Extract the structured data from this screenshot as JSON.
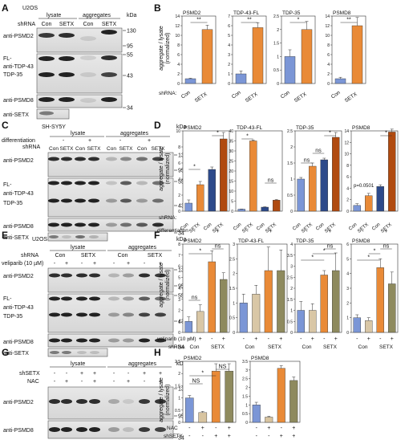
{
  "panels": {
    "A": {
      "letter": "A",
      "cell": "U2OS",
      "groups": [
        "lysate",
        "aggregates"
      ],
      "row_label": "shRNA",
      "lanes": [
        "Con",
        "SETX",
        "Con",
        "SETX"
      ],
      "kda_unit": "kDa",
      "markers": [
        "130",
        "95",
        "55",
        "43",
        "34"
      ],
      "blots": [
        "anti-PSMD2",
        "FL-",
        "anti-TDP-43",
        "TDP-35",
        "anti-PSMD8",
        "anti-SETX"
      ]
    },
    "B": {
      "letter": "B",
      "ylabel": [
        "aggregate / lysate",
        "(normalized)"
      ],
      "xrow_label": "shRNA:",
      "categories": [
        "Con",
        "SETX"
      ],
      "sig": "**",
      "sig_single": "*"
    },
    "C": {
      "letter": "C",
      "cell": "SH-SY5Y",
      "row1_label": "differentiation",
      "row2_label": "shRNA",
      "groups": [
        "lysate",
        "aggregates"
      ],
      "pm": [
        "-",
        "+",
        "-",
        "+"
      ],
      "lanes": [
        "Con",
        "SETX",
        "Con",
        "SETX",
        "Con",
        "SETX",
        "Con",
        "SETX"
      ],
      "kda_unit": "kDa",
      "markers": [
        "130",
        "95",
        "55",
        "43",
        "34"
      ],
      "blots": [
        "anti-PSMD2",
        "FL-",
        "anti-TDP-43",
        "TDP-35",
        "anti-PSMD8",
        "anti-SETX"
      ]
    },
    "D": {
      "letter": "D",
      "ylabel": [
        "aggregate / lysate",
        "(normalized)"
      ],
      "xrow1_label": "shRNA:",
      "xrow2_label": "differentiation",
      "lanes": [
        "Con",
        "SETX",
        "Con",
        "SETX"
      ],
      "pm": [
        "-",
        "+"
      ],
      "sig": "*",
      "ns": "ns",
      "pval": "p=0.0501"
    },
    "E": {
      "letter": "E",
      "cell": "U2OS",
      "row1_label": "shRNA",
      "row2_label": "veliparib (10 µM)",
      "groups": [
        "lysate",
        "aggregates"
      ],
      "sh": [
        "Con",
        "SETX",
        "Con",
        "SETX"
      ],
      "pm": [
        "-",
        "+",
        "-",
        "+",
        "-",
        "+",
        "-",
        "+"
      ],
      "kda_unit": "kDa",
      "markers": [
        "130",
        "95",
        "55",
        "43",
        "34"
      ],
      "blots": [
        "anti-PSMD2",
        "FL-",
        "anti-TDP-43",
        "TDP-35",
        "anti-PSMD8",
        "anti-SETX"
      ]
    },
    "F": {
      "letter": "F",
      "ylabel": [
        "aggregate / lysate",
        "(normalized)"
      ],
      "xrow1_label": "veliparib (10 µM)",
      "xrow2_label": "shRNA",
      "pm": [
        "-",
        "+",
        "-",
        "+"
      ],
      "sh": [
        "Con",
        "SETX"
      ],
      "sig": "*",
      "ns": "ns"
    },
    "G": {
      "letter": "G",
      "row1_label": "shSETX",
      "row2_label": "NAC",
      "groups": [
        "lysate",
        "aggregates"
      ],
      "row1": [
        "-",
        "-",
        "+",
        "+",
        "-",
        "-",
        "+",
        "+"
      ],
      "row2": [
        "-",
        "+",
        "-",
        "+",
        "-",
        "+",
        "-",
        "+"
      ],
      "kda_unit": "kDa",
      "markers": [
        "130",
        "95",
        "34"
      ],
      "blots": [
        "anti-PSMD2",
        "anti-PSMD8"
      ]
    },
    "H": {
      "letter": "H",
      "ylabel": [
        "aggregate / lysate",
        "(normalized)"
      ],
      "xrow1_label": "NAC",
      "xrow2_label": "shSETX",
      "row1": [
        "-",
        "+",
        "-",
        "+"
      ],
      "row2": [
        "-",
        "-",
        "+",
        "+"
      ],
      "sig": "*",
      "ns": "NS"
    }
  },
  "colors": {
    "con": "#7b96d6",
    "setx": "#e98a37",
    "con_dark": "#2d4a8a",
    "setx_dark": "#b04a10",
    "con_light": "#d9c7a6",
    "setx_olive": "#8e8a5e",
    "setx_beige": "#d8c4a0"
  },
  "chart_data": [
    {
      "panel": "B",
      "type": "bar",
      "title": "PSMD2",
      "categories": [
        "Con",
        "SETX"
      ],
      "values": [
        1,
        11.2
      ],
      "errors": [
        0.1,
        0.9
      ],
      "ylim": [
        0,
        14
      ],
      "yticks": [
        0,
        2,
        4,
        6,
        8,
        10,
        12,
        14
      ],
      "sig": "**"
    },
    {
      "panel": "B",
      "type": "bar",
      "title": "TDP-43-FL",
      "categories": [
        "Con",
        "SETX"
      ],
      "values": [
        1,
        5.8
      ],
      "errors": [
        0.3,
        0.5
      ],
      "ylim": [
        0,
        7
      ],
      "yticks": [
        0,
        1,
        2,
        3,
        4,
        5,
        6,
        7
      ],
      "sig": "**"
    },
    {
      "panel": "B",
      "type": "bar",
      "title": "TDP-35",
      "categories": [
        "Con",
        "SETX"
      ],
      "values": [
        1,
        2
      ],
      "errors": [
        0.25,
        0.3
      ],
      "ylim": [
        0,
        2.5
      ],
      "yticks": [
        0,
        0.5,
        1,
        1.5,
        2,
        2.5
      ],
      "sig": "*"
    },
    {
      "panel": "B",
      "type": "bar",
      "title": "PSMD8",
      "categories": [
        "Con",
        "SETX"
      ],
      "values": [
        1,
        12
      ],
      "errors": [
        0.3,
        1.7
      ],
      "ylim": [
        0,
        14
      ],
      "yticks": [
        0,
        2,
        4,
        6,
        8,
        10,
        12,
        14
      ],
      "sig": "**"
    },
    {
      "panel": "D",
      "type": "bar",
      "title": "PSMD2",
      "categories": [
        "Con -",
        "SETX -",
        "Con +",
        "SETX +"
      ],
      "values": [
        1,
        3.3,
        5.2,
        9
      ],
      "errors": [
        0.4,
        0.4,
        0.3,
        0.8
      ],
      "ylim": [
        0,
        10
      ],
      "yticks": [
        0,
        2,
        4,
        6,
        8,
        10
      ]
    },
    {
      "panel": "D",
      "type": "bar",
      "title": "TDP-43-FL",
      "categories": [
        "Con -",
        "SETX -",
        "Con +",
        "SETX +"
      ],
      "values": [
        1,
        35,
        2,
        5.5
      ],
      "errors": [
        0.1,
        0.5,
        0.2,
        0.3
      ],
      "ylim": [
        0,
        40
      ],
      "yticks": [
        0,
        5,
        10,
        15,
        20,
        25,
        30,
        35,
        40
      ]
    },
    {
      "panel": "D",
      "type": "bar",
      "title": "TDP-35",
      "categories": [
        "Con -",
        "SETX -",
        "Con +",
        "SETX +"
      ],
      "values": [
        1,
        1.4,
        1.6,
        2.3
      ],
      "errors": [
        0.05,
        0.1,
        0.05,
        0.15
      ],
      "ylim": [
        0,
        2.5
      ],
      "yticks": [
        0,
        0.5,
        1,
        1.5,
        2,
        2.5
      ]
    },
    {
      "panel": "D",
      "type": "bar",
      "title": "PSMD8",
      "categories": [
        "Con -",
        "SETX -",
        "Con +",
        "SETX +"
      ],
      "values": [
        1,
        2.7,
        4.3,
        13.8
      ],
      "errors": [
        0.3,
        0.4,
        0.3,
        0.5
      ],
      "ylim": [
        0,
        14
      ],
      "yticks": [
        0,
        2,
        4,
        6,
        8,
        10,
        12,
        14
      ],
      "pval": "p=0.0501"
    },
    {
      "panel": "F",
      "type": "bar",
      "title": "PSMD2",
      "categories": [
        "Con -",
        "Con +",
        "SETX -",
        "SETX +"
      ],
      "values": [
        1,
        1.9,
        6.4,
        4.8
      ],
      "errors": [
        0.4,
        0.6,
        1,
        0.6
      ],
      "ylim": [
        0,
        8
      ],
      "yticks": [
        0,
        1,
        2,
        3,
        4,
        5,
        6,
        7,
        8
      ]
    },
    {
      "panel": "F",
      "type": "bar",
      "title": "TDP-43-FL",
      "categories": [
        "Con -",
        "Con +",
        "SETX -",
        "SETX +"
      ],
      "values": [
        1,
        1.3,
        2.1,
        2.1
      ],
      "errors": [
        0.3,
        0.3,
        0.8,
        0.7
      ],
      "ylim": [
        0,
        3
      ],
      "yticks": [
        0,
        0.5,
        1,
        1.5,
        2,
        2.5,
        3
      ]
    },
    {
      "panel": "F",
      "type": "bar",
      "title": "TDP-35",
      "categories": [
        "Con -",
        "Con +",
        "SETX -",
        "SETX +"
      ],
      "values": [
        1,
        1,
        2.6,
        2.8
      ],
      "errors": [
        0.4,
        0.3,
        0.2,
        0.8
      ],
      "ylim": [
        0,
        4
      ],
      "yticks": [
        0,
        0.5,
        1,
        1.5,
        2,
        2.5,
        3,
        3.5,
        4
      ]
    },
    {
      "panel": "F",
      "type": "bar",
      "title": "PSMD8",
      "categories": [
        "Con -",
        "Con +",
        "SETX -",
        "SETX +"
      ],
      "values": [
        1,
        0.8,
        4.4,
        3.3
      ],
      "errors": [
        0.2,
        0.2,
        0.6,
        0.8
      ],
      "ylim": [
        0,
        6
      ],
      "yticks": [
        0,
        1,
        2,
        3,
        4,
        5,
        6
      ]
    },
    {
      "panel": "H",
      "type": "bar",
      "title": "PSMD2",
      "categories": [
        "- -",
        "+ -",
        "- +",
        "+ +"
      ],
      "values": [
        1,
        0.4,
        2.1,
        2.1
      ],
      "errors": [
        0.1,
        0.05,
        0.3,
        0.3
      ],
      "ylim": [
        0,
        2.5
      ],
      "yticks": [
        0,
        0.5,
        1,
        1.5,
        2,
        2.5
      ],
      "sig": "*",
      "ns": "NS"
    },
    {
      "panel": "H",
      "type": "bar",
      "title": "PSMD8",
      "categories": [
        "- -",
        "+ -",
        "- +",
        "+ +"
      ],
      "values": [
        1,
        0.3,
        3.1,
        2.4
      ],
      "errors": [
        0.15,
        0.05,
        0.15,
        0.2
      ],
      "ylim": [
        0,
        3.5
      ],
      "yticks": [
        0,
        0.5,
        1,
        1.5,
        2,
        2.5,
        3,
        3.5
      ]
    }
  ]
}
